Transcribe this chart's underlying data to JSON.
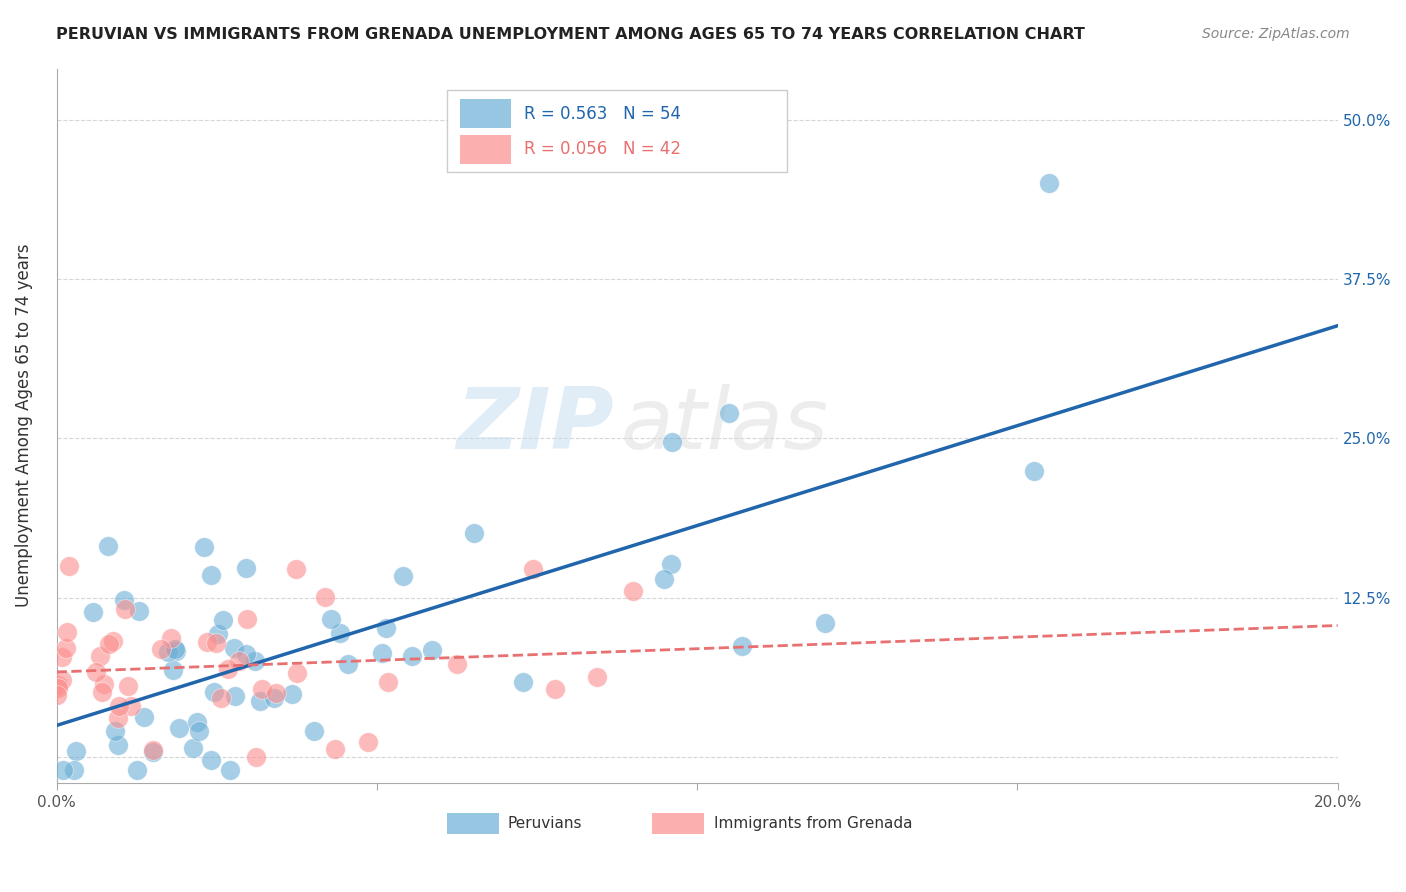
{
  "title": "PERUVIAN VS IMMIGRANTS FROM GRENADA UNEMPLOYMENT AMONG AGES 65 TO 74 YEARS CORRELATION CHART",
  "source": "Source: ZipAtlas.com",
  "ylabel": "Unemployment Among Ages 65 to 74 years",
  "xlim": [
    0,
    0.2
  ],
  "ylim": [
    -0.02,
    0.54
  ],
  "legend_blue_r": "R = 0.563",
  "legend_blue_n": "N = 54",
  "legend_pink_r": "R = 0.056",
  "legend_pink_n": "N = 42",
  "blue_color": "#6baed6",
  "pink_color": "#fc8d8d",
  "blue_line_color": "#2166ac",
  "pink_line_color": "#e87070",
  "watermark_zip": "ZIP",
  "watermark_atlas": "atlas",
  "blue_label": "Peruvians",
  "pink_label": "Immigrants from Grenada"
}
